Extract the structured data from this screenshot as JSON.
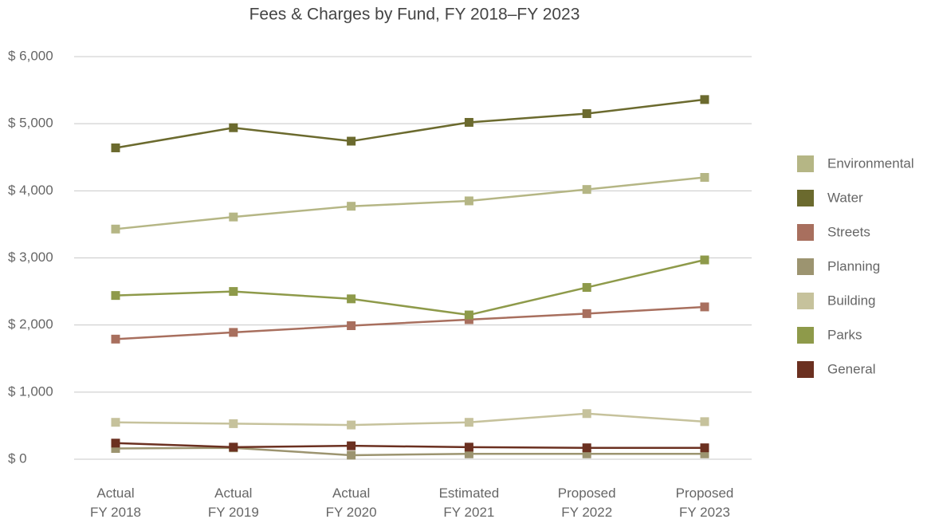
{
  "chart_data": {
    "type": "line",
    "title": "Fees & Charges by Fund, FY 2018–FY 2023",
    "categories": [
      "Actual\nFY 2018",
      "Actual\nFY 2019",
      "Actual\nFY 2020",
      "Estimated\nFY 2021",
      "Proposed\nFY 2022",
      "Proposed\nFY 2023"
    ],
    "series": [
      {
        "name": "Environmental",
        "color": "#b5b685",
        "values": [
          3430,
          3610,
          3770,
          3850,
          4020,
          4200
        ]
      },
      {
        "name": "Water",
        "color": "#6b6a2e",
        "values": [
          4640,
          4940,
          4740,
          5020,
          5150,
          5360
        ]
      },
      {
        "name": "Streets",
        "color": "#a86f5e",
        "values": [
          1790,
          1890,
          1990,
          2080,
          2170,
          2270
        ]
      },
      {
        "name": "Planning",
        "color": "#9c9470",
        "values": [
          160,
          170,
          60,
          80,
          80,
          80
        ]
      },
      {
        "name": "Building",
        "color": "#c6c29c",
        "values": [
          550,
          530,
          510,
          550,
          680,
          560
        ]
      },
      {
        "name": "Parks",
        "color": "#8e9a4a",
        "values": [
          2440,
          2500,
          2390,
          2150,
          2560,
          2970
        ]
      },
      {
        "name": "General",
        "color": "#6b3020",
        "values": [
          240,
          180,
          200,
          180,
          170,
          170
        ]
      }
    ],
    "ylim": [
      0,
      6000
    ],
    "yticks": [
      {
        "value": 0,
        "label": "$ 0"
      },
      {
        "value": 1000,
        "label": "$ 1,000"
      },
      {
        "value": 2000,
        "label": "$ 2,000"
      },
      {
        "value": 3000,
        "label": "$ 3,000"
      },
      {
        "value": 4000,
        "label": "$ 4,000"
      },
      {
        "value": 5000,
        "label": "$ 5,000"
      },
      {
        "value": 6000,
        "label": "$ 6,000"
      }
    ],
    "grid": true,
    "legend": "right"
  }
}
